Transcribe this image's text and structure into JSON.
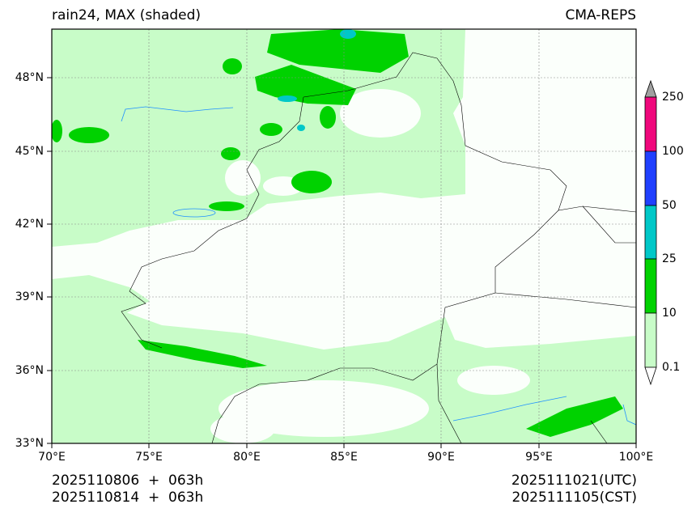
{
  "header": {
    "title_left": "rain24, MAX (shaded)",
    "title_right": "CMA-REPS"
  },
  "axes": {
    "lat_labels": [
      "48°N",
      "45°N",
      "42°N",
      "39°N",
      "36°N",
      "33°N"
    ],
    "lon_labels": [
      "70°E",
      "75°E",
      "80°E",
      "85°E",
      "90°E",
      "95°E",
      "100°E"
    ],
    "lat_range": [
      33,
      50
    ],
    "lon_range": [
      70,
      100
    ]
  },
  "colorbar": {
    "labels": [
      "250",
      "100",
      "50",
      "25",
      "10",
      "0.1"
    ],
    "colors": [
      "#f0087c",
      "#2040ff",
      "#00c8c8",
      "#00d200",
      "#c8fcc8"
    ],
    "extend_max_color": "#a0a0a0",
    "extend_min_color": "#ffffff"
  },
  "footer": {
    "init_utc": "2025110806  +  063h",
    "init_cst": "2025110814  +  063h",
    "valid_utc": "2025111021(UTC)",
    "valid_cst": "2025111105(CST)"
  }
}
